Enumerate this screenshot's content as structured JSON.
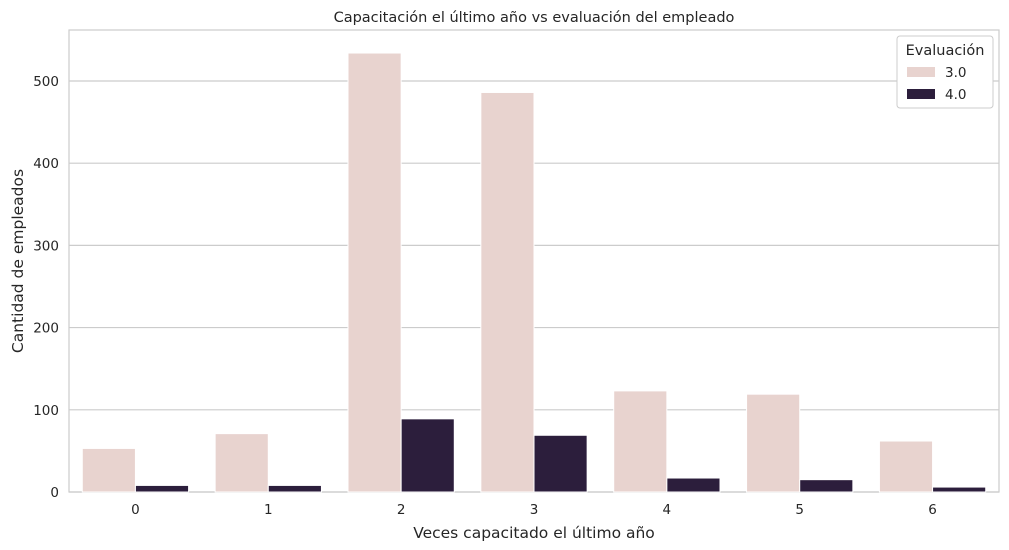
{
  "chart_data": {
    "type": "bar",
    "title": "Capacitación el último año vs evaluación del empleado",
    "xlabel": "Veces capacitado el último año",
    "ylabel": "Cantidad de empleados",
    "categories": [
      "0",
      "1",
      "2",
      "3",
      "4",
      "5",
      "6"
    ],
    "series": [
      {
        "name": "3.0",
        "color": "#e8d3cf",
        "values": [
          53,
          71,
          534,
          486,
          123,
          119,
          62
        ]
      },
      {
        "name": "4.0",
        "color": "#2c1e3c",
        "values": [
          8,
          8,
          89,
          69,
          17,
          15,
          6
        ]
      }
    ],
    "ylim": [
      0,
      562
    ],
    "yticks": [
      0,
      100,
      200,
      300,
      400,
      500
    ],
    "grid": "horizontal",
    "legend": {
      "title": "Evaluación",
      "placement": "top-right"
    }
  }
}
